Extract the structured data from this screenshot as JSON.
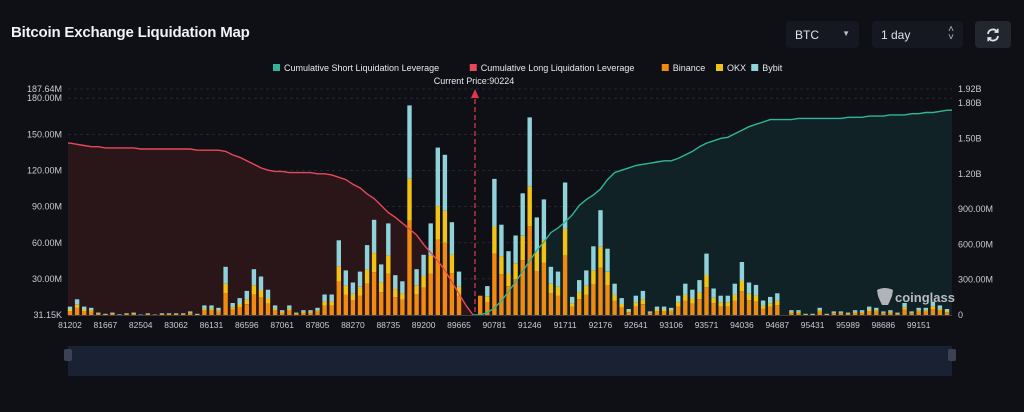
{
  "header": {
    "title": "Bitcoin Exchange Liquidation Map"
  },
  "controls": {
    "symbol_select": "BTC",
    "range_select": "1 day",
    "refresh_icon": "refresh-icon"
  },
  "colors": {
    "short_line": "#2fb59a",
    "long_line": "#e8495a",
    "binance": "#f08a10",
    "okx": "#f2c315",
    "bybit": "#8fd2da"
  },
  "watermark": "coinglass",
  "chart_data": {
    "type": "bar",
    "legend": [
      "Cumulative Short Liquidation Leverage",
      "Cumulative Long Liquidation Leverage",
      "Binance",
      "OKX",
      "Bybit"
    ],
    "legend_position": "top",
    "current_price_label": "Current Price:90224",
    "x_tick_labels": [
      "81202",
      "81667",
      "82504",
      "83062",
      "86131",
      "86596",
      "87061",
      "87805",
      "88270",
      "88735",
      "89200",
      "89665",
      "90781",
      "91246",
      "91711",
      "92176",
      "92641",
      "93106",
      "93571",
      "94036",
      "94687",
      "95431",
      "95989",
      "98686",
      "99151"
    ],
    "left_axis": {
      "ticks": [
        "187.64M",
        "180.00M",
        "150.00M",
        "120.00M",
        "90.00M",
        "60.00M",
        "30.00M",
        "31.15K"
      ],
      "tick_values_m": [
        187.64,
        180,
        150,
        120,
        90,
        60,
        30,
        0.03115
      ],
      "range_m": [
        0.03115,
        187.64
      ]
    },
    "right_axis": {
      "ticks": [
        "1.92B",
        "1.80B",
        "1.50B",
        "1.20B",
        "900.00M",
        "600.00M",
        "300.00M",
        "0"
      ],
      "tick_values_b": [
        1.92,
        1.8,
        1.5,
        1.2,
        0.9,
        0.6,
        0.3,
        0
      ],
      "range_b": [
        0,
        1.92
      ]
    },
    "grid": true,
    "series": [
      {
        "name": "Binance",
        "values": [
          3.2,
          5.9,
          3.2,
          2.7,
          0.9,
          0.5,
          0.9,
          0.2,
          0.7,
          0.9,
          0.1,
          0.7,
          0.1,
          0.7,
          0.7,
          0.7,
          0.7,
          1.4,
          0.5,
          3.6,
          3.6,
          2.7,
          18,
          4.5,
          6.3,
          9,
          17.1,
          14.4,
          9.5,
          3.6,
          1.8,
          3.6,
          0.9,
          1.8,
          1.8,
          2.7,
          7.7,
          7.7,
          27.9,
          16.7,
          12.2,
          16.2,
          26.1,
          35.6,
          18.9,
          34.2,
          14.9,
          12.6,
          78.3,
          17.1,
          22.5,
          34.2,
          62.6,
          59.9,
          34.7,
          16.2,
          0,
          0,
          16,
          10.8,
          50.9,
          33.8,
          23.9,
          29.7,
          45.5,
          73.8,
          36.5,
          43.2,
          18,
          16.2,
          49.5,
          6.8,
          13.1,
          16.7,
          25.7,
          39.2,
          24.8,
          11.7,
          6.3,
          2.3,
          7.2,
          9,
          1.4,
          3.2,
          3.2,
          2.7,
          7.2,
          11.7,
          9.5,
          13.1,
          23,
          9.9,
          7.2,
          7.2,
          11.7,
          19.8,
          12.2,
          11.3,
          5.4,
          6.8,
          8.1,
          0,
          1.8,
          1.8,
          0.5,
          0.5,
          2.7,
          0.5,
          1.4,
          1.4,
          0.9,
          1.8,
          1.8,
          3.2,
          2.7,
          1.4,
          1.8,
          0.9,
          4.5,
          1.4,
          2.7,
          2.7,
          5,
          3.6,
          2.3
        ]
      },
      {
        "name": "OKX",
        "values": [
          1.4,
          2.6,
          1.4,
          1.2,
          0.4,
          0.2,
          0.4,
          0.1,
          0.3,
          0.4,
          0.1,
          0.3,
          0.1,
          0.3,
          0.3,
          0.3,
          0.3,
          0.6,
          0.2,
          1.6,
          1.6,
          1.2,
          8,
          2,
          2.8,
          4,
          7.6,
          6.4,
          4.2,
          1.6,
          0.8,
          1.6,
          0.4,
          0.8,
          0.8,
          1.2,
          3.4,
          3.4,
          12.4,
          7.4,
          5.4,
          7.2,
          11.6,
          15.8,
          8.4,
          15.2,
          6.6,
          5.6,
          34.8,
          7.6,
          10,
          15.2,
          27.8,
          26.6,
          15.4,
          7.2,
          0,
          0,
          0,
          4.8,
          22.6,
          15,
          10.6,
          13.2,
          20.2,
          32.8,
          16.2,
          19.2,
          8,
          7.2,
          22,
          3,
          5.8,
          7.4,
          11.4,
          17.4,
          11,
          5.2,
          2.8,
          1,
          3.2,
          4,
          0.6,
          1.4,
          1.4,
          1.2,
          3.2,
          5.2,
          4.2,
          5.8,
          10.2,
          4.4,
          3.2,
          3.2,
          5.2,
          8.8,
          5.4,
          5,
          2.4,
          3,
          3.6,
          0,
          0.8,
          0.8,
          0.2,
          0.2,
          1.2,
          0.2,
          0.6,
          0.6,
          0.4,
          0.8,
          0.8,
          1.4,
          1.2,
          0.6,
          0.8,
          0.4,
          2,
          0.6,
          1.2,
          1.2,
          2.2,
          1.6,
          1
        ]
      },
      {
        "name": "Bybit",
        "values": [
          2.4,
          4.5,
          2.4,
          2.1,
          0.7,
          0.3,
          0.7,
          0.2,
          0.5,
          0.7,
          0.1,
          0.5,
          0.1,
          0.5,
          0.5,
          0.5,
          0.5,
          1,
          0.3,
          2.8,
          2.8,
          2.1,
          14,
          3.5,
          4.9,
          7,
          13.3,
          11.2,
          7.3,
          2.8,
          1.4,
          2.8,
          0.7,
          1.4,
          1.4,
          2.1,
          5.9,
          5.9,
          21.7,
          12.9,
          9.4,
          12.6,
          20.3,
          27.6,
          14.7,
          26.6,
          11.5,
          9.8,
          60.9,
          13.3,
          17.5,
          26.6,
          48.6,
          46.5,
          26.9,
          12.6,
          0,
          0,
          0,
          8.4,
          39.5,
          26.2,
          18.5,
          23.1,
          35.3,
          57.4,
          28.3,
          33.6,
          14,
          12.6,
          38.5,
          5.2,
          10.1,
          12.9,
          19.9,
          30.4,
          19.2,
          9.1,
          4.9,
          1.7,
          5.6,
          7,
          1,
          2.4,
          2.4,
          2.1,
          5.6,
          9.1,
          7.3,
          10.1,
          17.8,
          7.7,
          5.6,
          5.6,
          9.1,
          15.4,
          9.4,
          8.7,
          4.2,
          5.2,
          6.3,
          0,
          1.4,
          1.4,
          0.3,
          0.3,
          2.1,
          0.3,
          1,
          1,
          0.7,
          1.4,
          1.4,
          2.4,
          2.1,
          1,
          1.4,
          0.7,
          3.5,
          1,
          2.1,
          2.1,
          3.8,
          2.8,
          1.7
        ]
      },
      {
        "name": "Cumulative Long Liquidation Leverage",
        "unit": "B",
        "values": [
          1.46,
          1.45,
          1.44,
          1.43,
          1.43,
          1.42,
          1.42,
          1.42,
          1.42,
          1.42,
          1.41,
          1.41,
          1.41,
          1.41,
          1.41,
          1.41,
          1.41,
          1.41,
          1.4,
          1.4,
          1.4,
          1.4,
          1.39,
          1.36,
          1.34,
          1.31,
          1.28,
          1.25,
          1.23,
          1.22,
          1.22,
          1.21,
          1.21,
          1.21,
          1.21,
          1.2,
          1.2,
          1.19,
          1.17,
          1.15,
          1.11,
          1.08,
          1.03,
          0.99,
          0.93,
          0.87,
          0.83,
          0.78,
          0.73,
          0.68,
          0.6,
          0.53,
          0.46,
          0.38,
          0.28,
          0.18,
          0.08,
          0
        ]
      },
      {
        "name": "Cumulative Short Liquidation Leverage",
        "unit": "B",
        "values": [
          0,
          0,
          0.02,
          0.06,
          0.12,
          0.2,
          0.28,
          0.37,
          0.46,
          0.55,
          0.62,
          0.7,
          0.74,
          0.79,
          0.85,
          0.93,
          0.98,
          1.02,
          1.07,
          1.15,
          1.21,
          1.23,
          1.25,
          1.27,
          1.28,
          1.29,
          1.3,
          1.31,
          1.31,
          1.33,
          1.36,
          1.39,
          1.43,
          1.46,
          1.48,
          1.5,
          1.51,
          1.54,
          1.57,
          1.6,
          1.62,
          1.64,
          1.66,
          1.66,
          1.66,
          1.66,
          1.67,
          1.67,
          1.67,
          1.67,
          1.67,
          1.67,
          1.67,
          1.68,
          1.68,
          1.68,
          1.69,
          1.69,
          1.69,
          1.7,
          1.7,
          1.7,
          1.71,
          1.71,
          1.72,
          1.72,
          1.73,
          1.74
        ]
      }
    ]
  }
}
